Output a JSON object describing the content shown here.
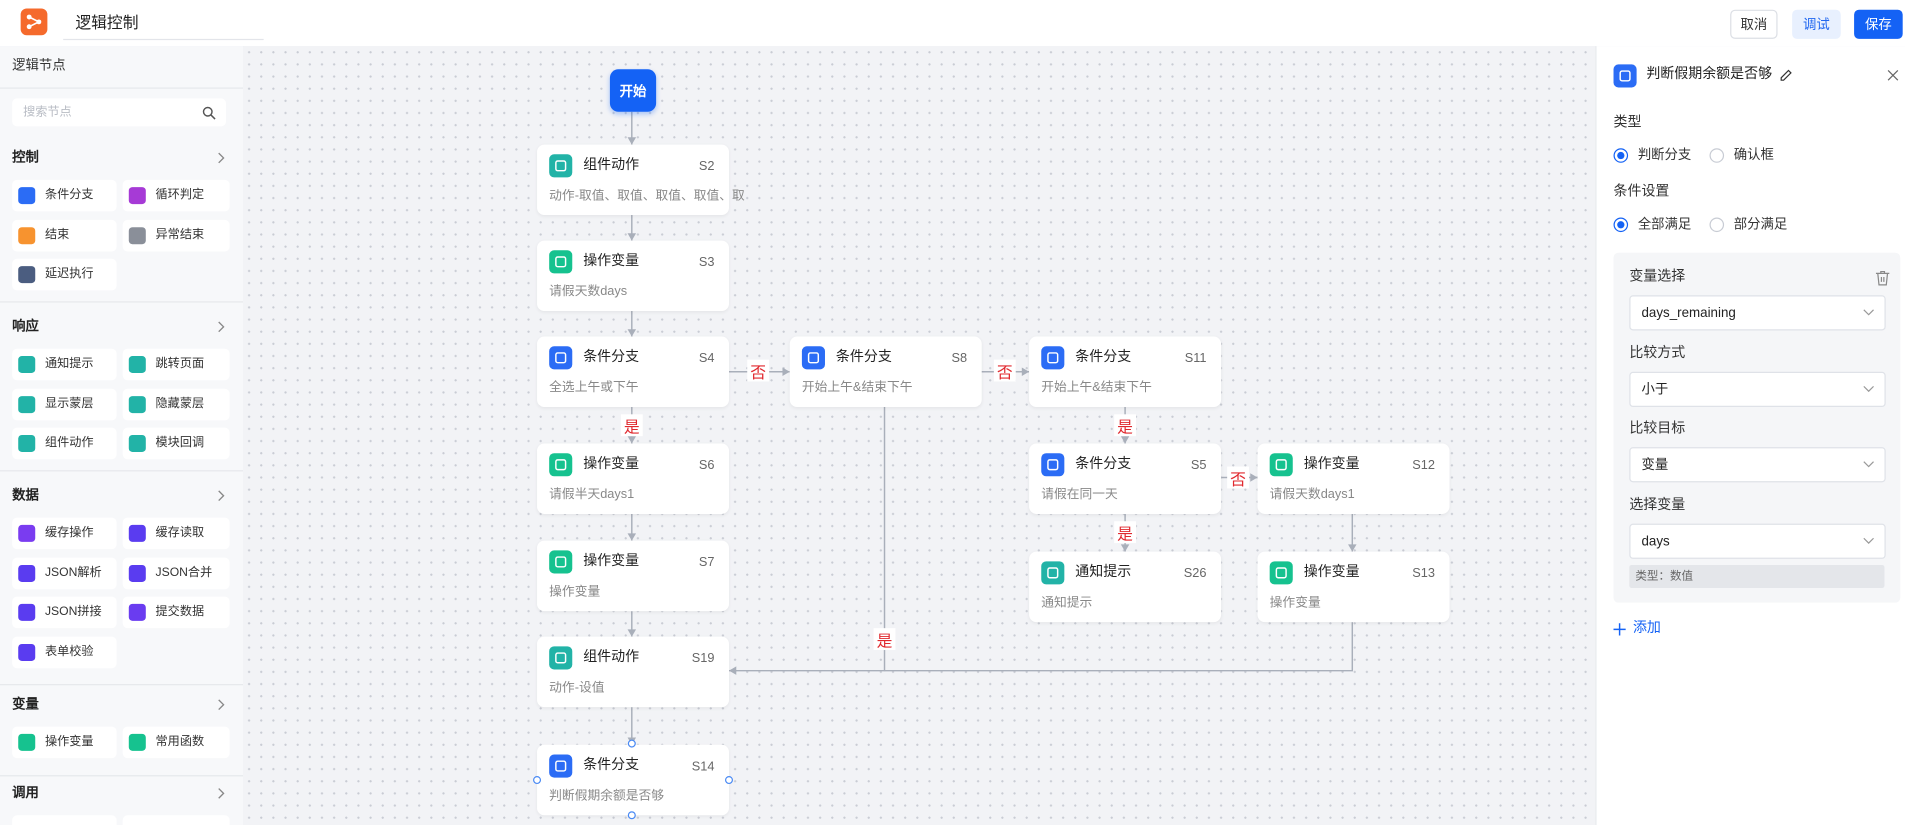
{
  "header": {
    "title": "逻辑控制",
    "buttons": [
      "取消",
      "调试",
      "保存"
    ]
  },
  "sidebar": {
    "title": "逻辑节点",
    "search_placeholder": "搜索节点",
    "groups": [
      {
        "name": "控制",
        "items": [
          "条件分支",
          "循环判定",
          "结束",
          "异常结束",
          "延迟执行"
        ]
      },
      {
        "name": "响应",
        "items": [
          "通知提示",
          "跳转页面",
          "显示蒙层",
          "隐藏蒙层",
          "组件动作",
          "模块回调"
        ]
      },
      {
        "name": "数据",
        "items": [
          "缓存操作",
          "缓存读取",
          "JSON解析",
          "JSON合并",
          "JSON拼接",
          "提交数据",
          "表单校验"
        ]
      },
      {
        "name": "变量",
        "items": [
          "操作变量",
          "常用函数"
        ]
      },
      {
        "name": "调用",
        "items": []
      }
    ]
  },
  "canvas": {
    "start": "开始",
    "nodes": [
      {
        "title": "组件动作",
        "id": "S2",
        "desc": "动作-取值、取值、取值、取值、取"
      },
      {
        "title": "操作变量",
        "id": "S3",
        "desc": "请假天数days"
      },
      {
        "title": "条件分支",
        "id": "S4",
        "desc": "全选上午或下午"
      },
      {
        "title": "条件分支",
        "id": "S8",
        "desc": "开始上午&结束下午"
      },
      {
        "title": "条件分支",
        "id": "S11",
        "desc": "开始上午&结束下午"
      },
      {
        "title": "操作变量",
        "id": "S6",
        "desc": "请假半天days1"
      },
      {
        "title": "条件分支",
        "id": "S5",
        "desc": "请假在同一天"
      },
      {
        "title": "操作变量",
        "id": "S12",
        "desc": "请假天数days1"
      },
      {
        "title": "操作变量",
        "id": "S7",
        "desc": "操作变量"
      },
      {
        "title": "通知提示",
        "id": "S26",
        "desc": "通知提示"
      },
      {
        "title": "操作变量",
        "id": "S13",
        "desc": "操作变量"
      },
      {
        "title": "组件动作",
        "id": "S19",
        "desc": "动作-设值"
      },
      {
        "title": "条件分支",
        "id": "S14",
        "desc": "判断假期余额是否够"
      }
    ],
    "edge_labels": [
      "否",
      "否",
      "是",
      "是",
      "否",
      "是",
      "是"
    ]
  },
  "panel": {
    "title": "判断假期余额是否够",
    "type_label": "类型",
    "type_options": [
      "判断分支",
      "确认框"
    ],
    "condition_label": "条件设置",
    "condition_options": [
      "全部满足",
      "部分满足"
    ],
    "fields": [
      {
        "label": "变量选择",
        "value": "days_remaining"
      },
      {
        "label": "比较方式",
        "value": "小于"
      },
      {
        "label": "比较目标",
        "value": "变量"
      },
      {
        "label": "选择变量",
        "value": "days"
      }
    ],
    "type_note": "类型：数值",
    "add": "添加"
  }
}
